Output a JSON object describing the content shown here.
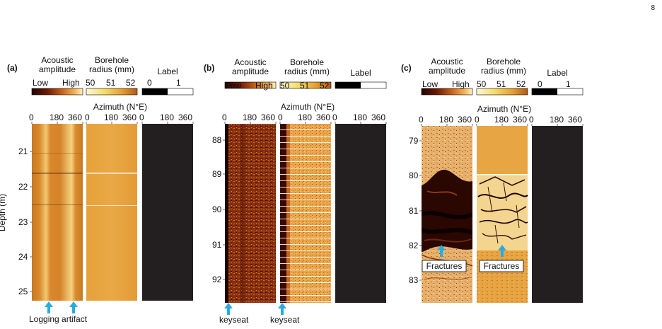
{
  "page_number": "8",
  "figure": {
    "colorbars": {
      "acoustic": {
        "title": "Acoustic amplitude",
        "low": "Low",
        "high": "High"
      },
      "radius": {
        "title": "Borehole radius (mm)",
        "ticks": [
          "50",
          "51",
          "52"
        ]
      },
      "label": {
        "title": "Label",
        "ticks": [
          "0",
          "1"
        ]
      }
    },
    "azimuth_title": "Azimuth (N°E)",
    "azimuth_ticks": [
      "0",
      "180",
      "360"
    ],
    "depth_axis_label": "Depth (m)",
    "panels": [
      {
        "id": "(a)",
        "depth_range": [
          20.4,
          25.3
        ],
        "depth_ticks": [
          "21",
          "22",
          "23",
          "24",
          "25"
        ],
        "annotation": "Logging artifact"
      },
      {
        "id": "(b)",
        "depth_range": [
          87.6,
          92.6
        ],
        "depth_ticks": [
          "88",
          "89",
          "90",
          "91",
          "92"
        ],
        "annotation_left": "keyseat",
        "annotation_right": "keyseat"
      },
      {
        "id": "(c)",
        "depth_range": [
          78.6,
          83.6
        ],
        "depth_ticks": [
          "79",
          "80",
          "81",
          "82",
          "83"
        ],
        "annotation": "Fractures"
      }
    ],
    "colors": {
      "label_track": "#231f20",
      "arrow": "#29abe2",
      "amp_low": "#3a0700",
      "amp_high": "#ffe08a"
    }
  }
}
